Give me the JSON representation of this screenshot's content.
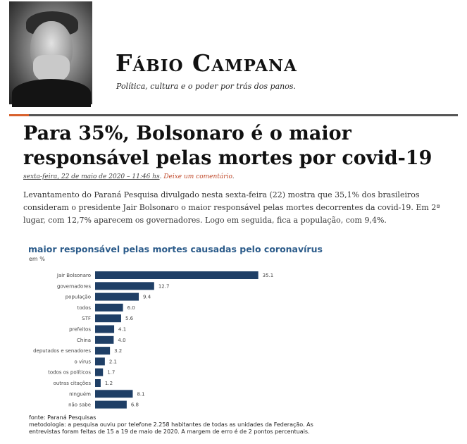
{
  "site": {
    "title": "Fábio Campana",
    "tagline": "Política, cultura e o poder por trás dos panos."
  },
  "post": {
    "title": "Para 35%, Bolsonaro é o maior responsável pelas mortes por covid-19",
    "date": "sexta-feira, 22 de maio de 2020 – 11:46 hs",
    "comment_link": "Deixe um comentário",
    "body": "Levantamento do Paraná Pesquisa divulgado nesta sexta-feira (22) mostra que 35,1% dos brasileiros consideram o presidente Jair Bolsonaro o maior responsável pelas mortes decorrentes da covid-19. Em 2ª lugar, com 12,7% aparecem os governadores. Logo em seguida, fica a população, com 9,4%."
  },
  "colors": {
    "accent": "#d8612d",
    "bar": "#1f3f66",
    "chart_title": "#2b5b8a",
    "link": "#c0492a"
  },
  "chart_data": {
    "type": "bar",
    "orientation": "horizontal",
    "title": "maior responsável pelas mortes causadas pelo coronavírus",
    "unit": "em %",
    "categories": [
      "Jair Bolsonaro",
      "governadores",
      "população",
      "todos",
      "STF",
      "prefeitos",
      "China",
      "deputados e senadores",
      "o vírus",
      "todos os políticos",
      "outras citações",
      "ninguém",
      "não sabe"
    ],
    "values": [
      35.1,
      12.7,
      9.4,
      6.0,
      5.6,
      4.1,
      4.0,
      3.2,
      2.1,
      1.7,
      1.2,
      8.1,
      6.8
    ],
    "value_labels": [
      "35.1",
      "12.7",
      "9.4",
      "6.0",
      "5.6",
      "4.1",
      "4.0",
      "3.2",
      "2.1",
      "1.7",
      "1.2",
      "8.1",
      "6.8"
    ],
    "grid": false,
    "source": "fonte: Paraná Pesquisas",
    "method": "metodologia: a pesquisa ouviu por telefone 2.258 habitantes de todas as unidades da Federação. As entrevistas foram feitas de 15 a 19 de maio de 2020. A margem de erro é de 2 pontos percentuais."
  }
}
